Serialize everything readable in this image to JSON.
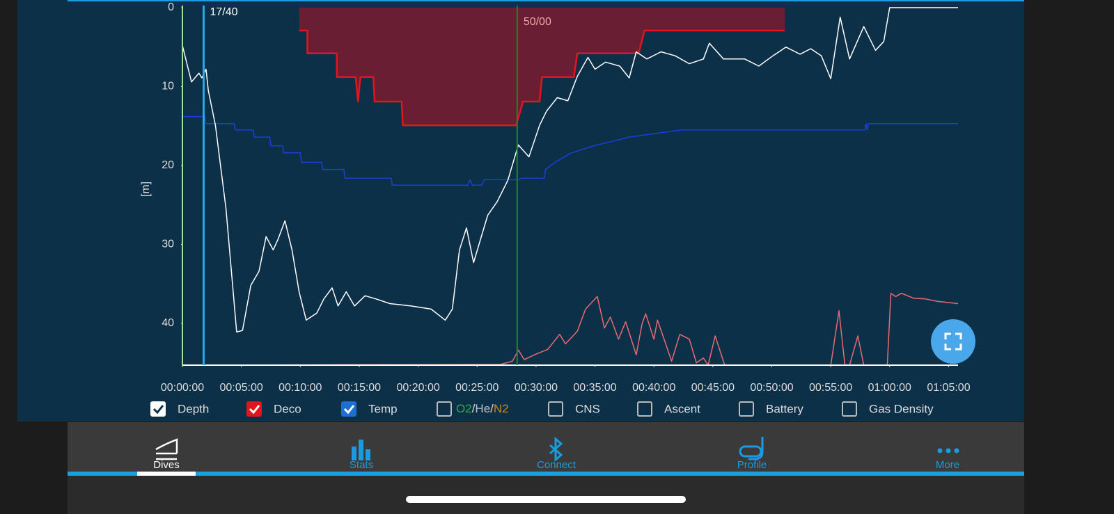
{
  "chart_data": {
    "type": "line",
    "y_label": "[m]",
    "xlim": [
      0,
      65.8
    ],
    "xticks": [
      {
        "value": 0,
        "label": "00:00:00"
      },
      {
        "value": 5,
        "label": "00:05:00"
      },
      {
        "value": 10,
        "label": "00:10:00"
      },
      {
        "value": 15,
        "label": "00:15:00"
      },
      {
        "value": 20,
        "label": "00:20:00"
      },
      {
        "value": 25,
        "label": "00:25:00"
      },
      {
        "value": 30,
        "label": "00:30:00"
      },
      {
        "value": 35,
        "label": "00:35:00"
      },
      {
        "value": 40,
        "label": "00:40:00"
      },
      {
        "value": 45,
        "label": "00:45:00"
      },
      {
        "value": 50,
        "label": "00:50:00"
      },
      {
        "value": 55,
        "label": "00:55:00"
      },
      {
        "value": 60,
        "label": "01:00:00"
      },
      {
        "value": 65,
        "label": "01:05:00"
      }
    ],
    "ylim": [
      45.3,
      0
    ],
    "yticks": [
      0,
      10,
      20,
      30,
      40
    ],
    "grid": false,
    "series": [
      {
        "name": "Deco",
        "color": "#e3141c",
        "fill": "#6a1e33",
        "area_to_top": true,
        "x": [
          9.9,
          10.6,
          10.6,
          13.1,
          13.1,
          14.7,
          14.9,
          15.1,
          16.2,
          16.3,
          18.6,
          18.7,
          28.3,
          28.9,
          30.3,
          30.5,
          33.2,
          33.5,
          38.7,
          39.2,
          51.1
        ],
        "values": [
          2.9,
          2.9,
          5.8,
          5.8,
          8.8,
          8.8,
          11.9,
          8.8,
          8.8,
          11.9,
          11.9,
          14.9,
          14.9,
          11.9,
          11.9,
          8.8,
          8.8,
          5.8,
          5.8,
          2.9,
          2.9
        ]
      },
      {
        "name": "Temp",
        "color": "#1a3fd6",
        "legend_color": "#1e6fd0",
        "x": [
          0,
          1.9,
          2.0,
          4.4,
          4.5,
          6.0,
          6.1,
          7.4,
          7.5,
          8.5,
          8.6,
          10.0,
          10.1,
          11.8,
          11.9,
          13.7,
          13.8,
          17.7,
          17.8,
          24.2,
          24.4,
          24.6,
          25.4,
          25.6,
          26.8,
          28.6,
          28.7,
          30.7,
          30.8,
          31.6,
          33.0,
          34.9,
          37.9,
          42.3,
          57.9,
          58.0,
          58.1,
          58.2,
          65.8
        ],
        "values": [
          13.8,
          13.8,
          14.7,
          14.7,
          15.5,
          15.5,
          16.4,
          16.4,
          17.5,
          17.5,
          18.4,
          18.4,
          19.6,
          19.6,
          20.5,
          20.5,
          21.6,
          21.6,
          22.5,
          22.5,
          21.8,
          22.5,
          22.5,
          21.8,
          21.8,
          21.8,
          21.6,
          21.6,
          20.5,
          19.6,
          18.4,
          17.5,
          16.4,
          15.5,
          15.5,
          14.7,
          15.5,
          14.7,
          14.7
        ]
      },
      {
        "name": "Depth",
        "color": "#ffffff",
        "legend_color": "#ffffff",
        "check_color": "#0d3049",
        "x": [
          0,
          0.77,
          1.4,
          1.65,
          2.0,
          2.2,
          2.8,
          3.7,
          4.6,
          5.1,
          5.8,
          6.5,
          7.1,
          7.7,
          8.1,
          8.7,
          9.3,
          9.9,
          10.5,
          11.4,
          12.0,
          12.7,
          13.2,
          13.9,
          14.6,
          15.5,
          16.4,
          17.6,
          19.4,
          21.1,
          22.3,
          22.9,
          23.5,
          24.1,
          24.7,
          25.9,
          26.7,
          27.6,
          28.5,
          29.4,
          30.3,
          30.9,
          31.8,
          32.7,
          33.5,
          34.4,
          35.0,
          35.9,
          37.1,
          37.9,
          38.5,
          39.4,
          40.6,
          41.8,
          43.0,
          44.2,
          44.7,
          45.9,
          47.7,
          48.9,
          50.1,
          51.2,
          52.4,
          53.3,
          54.2,
          55.0,
          55.8,
          56.6,
          57.8,
          58.8,
          59.5,
          60.0,
          65.8
        ],
        "values": [
          4.8,
          9.4,
          8.3,
          8.9,
          7.8,
          10.5,
          14.9,
          25.5,
          41.1,
          40.9,
          35.2,
          33.4,
          29.0,
          30.7,
          29.4,
          27.0,
          30.7,
          36.0,
          39.6,
          38.7,
          36.9,
          35.5,
          37.8,
          36.0,
          37.8,
          36.5,
          36.9,
          37.5,
          37.8,
          38.2,
          39.6,
          38.2,
          30.7,
          27.9,
          32.3,
          26.3,
          24.6,
          21.9,
          17.4,
          18.9,
          14.9,
          13.1,
          11.4,
          11.8,
          8.7,
          6.3,
          7.8,
          6.9,
          7.4,
          8.9,
          5.6,
          6.5,
          5.6,
          6.1,
          7.1,
          6.5,
          4.5,
          6.5,
          6.5,
          7.4,
          6.1,
          5.0,
          5.9,
          5.2,
          6.1,
          9.0,
          1.2,
          6.5,
          2.4,
          5.4,
          4.3,
          0,
          0
        ]
      },
      {
        "color": "#e86a72",
        "x": [
          0,
          27.0,
          28.0,
          28.5,
          29.0,
          30.0,
          31.0,
          32.0,
          32.5,
          33.5,
          34.2,
          35.2,
          35.8,
          36.3,
          37.0,
          37.6,
          38.5,
          39.0,
          39.3,
          40.0,
          40.3,
          41.0,
          41.5,
          42.2,
          43.0,
          43.6,
          44.2,
          44.6,
          45.2,
          46.0,
          55.0,
          55.7,
          56.2,
          56.6,
          57.3,
          57.8,
          58.2,
          59.2,
          59.8,
          60.1,
          60.5,
          61.0,
          62.0,
          63.0,
          64.0,
          65.8
        ],
        "values": [
          45.3,
          45.2,
          44.8,
          43.4,
          44.6,
          43.9,
          43.3,
          41.4,
          42.6,
          41.0,
          38.2,
          36.6,
          40.6,
          39.2,
          42.0,
          39.8,
          44.0,
          40.0,
          38.8,
          42.0,
          39.6,
          42.6,
          44.8,
          41.4,
          42.0,
          45.0,
          44.4,
          45.3,
          41.6,
          45.3,
          45.3,
          38.4,
          45.3,
          45.3,
          41.6,
          45.3,
          45.3,
          45.3,
          45.3,
          36.2,
          36.6,
          36.2,
          36.8,
          36.9,
          37.2,
          37.5
        ]
      }
    ],
    "annotations": [
      {
        "text": "17/40",
        "x": 1.8,
        "line_color": "#29a8e6",
        "text_color": "#ffffff"
      },
      {
        "text": "50/00",
        "x": 28.4,
        "line_color": "#1a8a1a",
        "text_color": "#f3a6a6"
      }
    ],
    "start_line_color": "#9be29b"
  },
  "legend_order": [
    "Depth",
    "Deco",
    "Temp"
  ],
  "options": [
    {
      "label_parts": [
        {
          "text": "O2",
          "color": "#2fae3a"
        },
        {
          "text": "/",
          "color": "#d8d8d8"
        },
        {
          "text": "He",
          "color": "#bdbdbd"
        },
        {
          "text": "/",
          "color": "#d8d8d8"
        },
        {
          "text": "N2",
          "color": "#c98a1e"
        }
      ],
      "checked": false
    },
    {
      "label": "CNS",
      "checked": false
    },
    {
      "label": "Ascent",
      "checked": false
    },
    {
      "label": "Battery",
      "checked": false
    },
    {
      "label": "Gas Density",
      "checked": false
    }
  ],
  "nav": [
    {
      "label": "Dives",
      "selected": true
    },
    {
      "label": "Stats",
      "selected": false
    },
    {
      "label": "Connect",
      "selected": false
    },
    {
      "label": "Profile",
      "selected": false
    },
    {
      "label": "More",
      "selected": false
    }
  ]
}
